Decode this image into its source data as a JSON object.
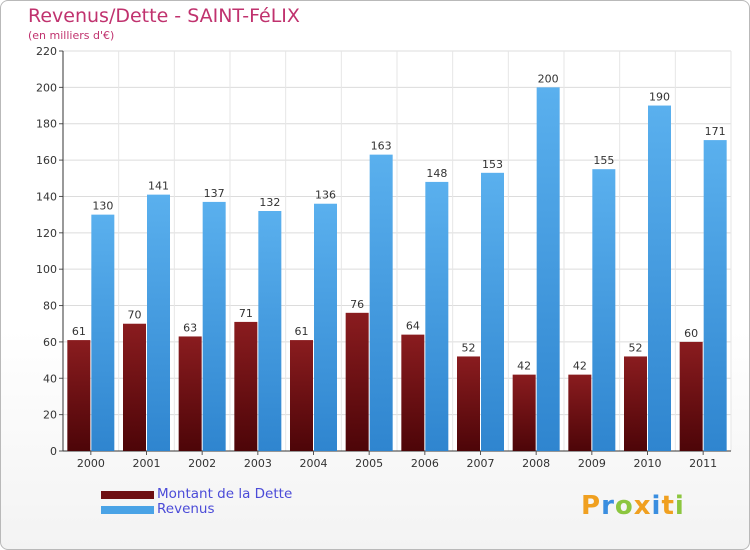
{
  "title": "Revenus/Dette - SAINT-FéLIX",
  "subtitle": "(en milliers d'€)",
  "chart_data": {
    "type": "bar",
    "categories": [
      "2000",
      "2001",
      "2002",
      "2003",
      "2004",
      "2005",
      "2006",
      "2007",
      "2008",
      "2009",
      "2010",
      "2011"
    ],
    "series": [
      {
        "name": "Montant de la Dette",
        "values": [
          61,
          70,
          63,
          71,
          61,
          76,
          64,
          52,
          42,
          42,
          52,
          60
        ],
        "color": "#6e0f12"
      },
      {
        "name": "Revenus",
        "values": [
          130,
          141,
          137,
          132,
          136,
          163,
          148,
          153,
          200,
          155,
          190,
          171
        ],
        "color": "#4aa3e6"
      }
    ],
    "yticks": [
      0,
      20,
      40,
      60,
      80,
      100,
      120,
      140,
      160,
      180,
      200,
      220
    ],
    "ylim": [
      0,
      220
    ],
    "grid": true,
    "legend": "bottom-left"
  },
  "legend": {
    "items": [
      {
        "label": "Montant de la Dette",
        "color": "#6e0f12"
      },
      {
        "label": "Revenus",
        "color": "#4aa3e6"
      }
    ]
  },
  "logo": {
    "text": "Proxiti",
    "letters": [
      "P",
      "r",
      "o",
      "x",
      "i",
      "t",
      "i"
    ]
  }
}
